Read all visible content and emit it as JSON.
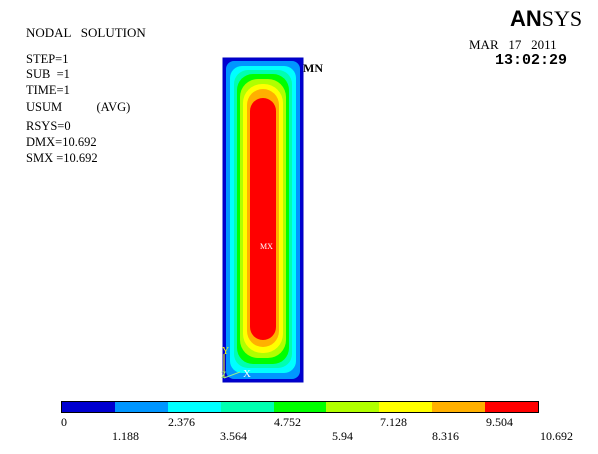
{
  "header": {
    "title": "NODAL   SOLUTION",
    "info_lines": [
      "STEP=1",
      "SUB  =1",
      "TIME=1",
      "USUM           (AVG)",
      "RSYS=0",
      "DMX=10.692",
      "SMX =10.692"
    ]
  },
  "brand": {
    "logo_bold": "AN",
    "logo_rest": "SYS",
    "date": "MAR   17   2011",
    "time": "13:02:29"
  },
  "plot": {
    "min_label": "MN",
    "max_label": "MX",
    "triad": {
      "y": "Y",
      "z": "Z",
      "x": "X"
    }
  },
  "legend": {
    "colors": [
      "#0000d0",
      "#0096ff",
      "#00ffff",
      "#00ffb0",
      "#00ff00",
      "#b0ff00",
      "#ffff00",
      "#ffb000",
      "#ff0000"
    ],
    "upper_labels": [
      "0",
      "2.376",
      "4.752",
      "7.128",
      "9.504"
    ],
    "lower_labels": [
      "1.188",
      "3.564",
      "5.94",
      "8.316",
      "10.692"
    ]
  }
}
